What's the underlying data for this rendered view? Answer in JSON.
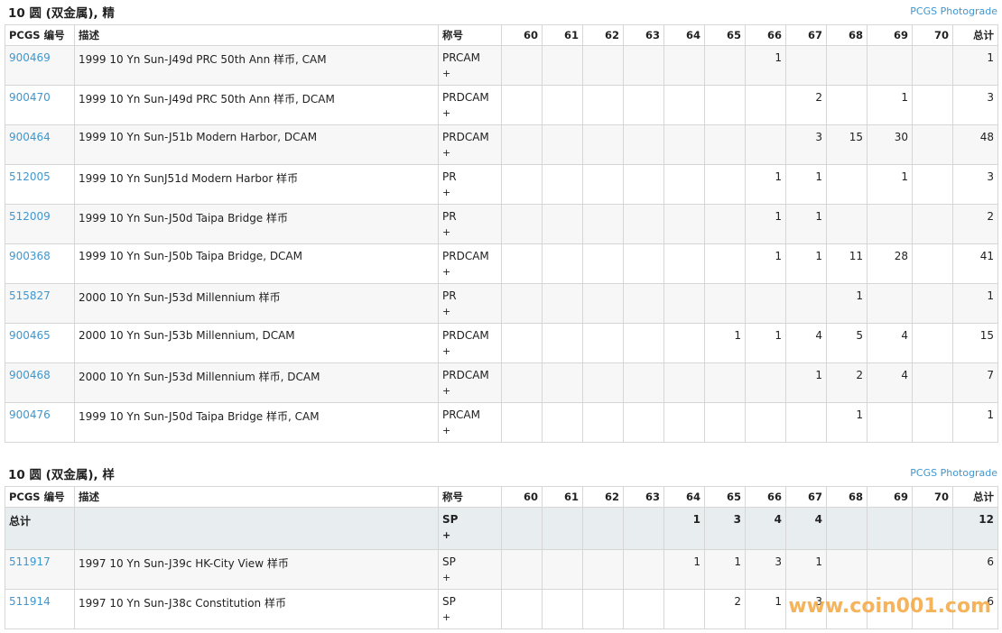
{
  "sections": [
    {
      "title": "10 圆 (双金属), 精",
      "link": "PCGS Photograde",
      "headers": [
        "PCGS 编号",
        "描述",
        "称号",
        "60",
        "61",
        "62",
        "63",
        "64",
        "65",
        "66",
        "67",
        "68",
        "69",
        "70",
        "总计"
      ],
      "rows": [
        {
          "pcgs": "900469",
          "description": "1999 10 Yn Sun-J49d PRC 50th Ann 样币, CAM",
          "designation": "PRCAM",
          "plus": "+",
          "grades": [
            null,
            null,
            null,
            null,
            null,
            null,
            1,
            null,
            null,
            null,
            null
          ],
          "total": 1
        },
        {
          "pcgs": "900470",
          "description": "1999 10 Yn Sun-J49d PRC 50th Ann 样币, DCAM",
          "designation": "PRDCAM",
          "plus": "+",
          "grades": [
            null,
            null,
            null,
            null,
            null,
            null,
            null,
            2,
            null,
            1,
            null
          ],
          "total": 3
        },
        {
          "pcgs": "900464",
          "description": "1999 10 Yn Sun-J51b Modern Harbor, DCAM",
          "designation": "PRDCAM",
          "plus": "+",
          "grades": [
            null,
            null,
            null,
            null,
            null,
            null,
            null,
            3,
            15,
            30,
            null
          ],
          "total": 48
        },
        {
          "pcgs": "512005",
          "description": "1999 10 Yn SunJ51d Modern Harbor 样币",
          "designation": "PR",
          "plus": "+",
          "grades": [
            null,
            null,
            null,
            null,
            null,
            null,
            1,
            1,
            null,
            1,
            null
          ],
          "total": 3
        },
        {
          "pcgs": "512009",
          "description": "1999 10 Yn Sun-J50d Taipa Bridge 样币",
          "designation": "PR",
          "plus": "+",
          "grades": [
            null,
            null,
            null,
            null,
            null,
            null,
            1,
            1,
            null,
            null,
            null
          ],
          "total": 2
        },
        {
          "pcgs": "900368",
          "description": "1999 10 Yn Sun-J50b Taipa Bridge, DCAM",
          "designation": "PRDCAM",
          "plus": "+",
          "grades": [
            null,
            null,
            null,
            null,
            null,
            null,
            1,
            1,
            11,
            28,
            null
          ],
          "total": 41
        },
        {
          "pcgs": "515827",
          "description": "2000 10 Yn Sun-J53d Millennium 样币",
          "designation": "PR",
          "plus": "+",
          "grades": [
            null,
            null,
            null,
            null,
            null,
            null,
            null,
            null,
            1,
            null,
            null
          ],
          "total": 1
        },
        {
          "pcgs": "900465",
          "description": "2000 10 Yn Sun-J53b Millennium, DCAM",
          "designation": "PRDCAM",
          "plus": "+",
          "grades": [
            null,
            null,
            null,
            null,
            null,
            1,
            1,
            4,
            5,
            4,
            null
          ],
          "total": 15
        },
        {
          "pcgs": "900468",
          "description": "2000 10 Yn Sun-J53d Millennium 样币, DCAM",
          "designation": "PRDCAM",
          "plus": "+",
          "grades": [
            null,
            null,
            null,
            null,
            null,
            null,
            null,
            1,
            2,
            4,
            null
          ],
          "total": 7
        },
        {
          "pcgs": "900476",
          "description": "1999 10 Yn Sun-J50d Taipa Bridge 样币, CAM",
          "designation": "PRCAM",
          "plus": "+",
          "grades": [
            null,
            null,
            null,
            null,
            null,
            null,
            null,
            null,
            1,
            null,
            null
          ],
          "total": 1
        }
      ]
    },
    {
      "title": "10 圆 (双金属), 样",
      "link": "PCGS Photograde",
      "headers": [
        "PCGS 编号",
        "描述",
        "称号",
        "60",
        "61",
        "62",
        "63",
        "64",
        "65",
        "66",
        "67",
        "68",
        "69",
        "70",
        "总计"
      ],
      "total_row": {
        "label": "总计",
        "designation": "SP",
        "plus": "+",
        "grades": [
          null,
          null,
          null,
          null,
          1,
          3,
          4,
          4,
          null,
          null,
          null
        ],
        "total": 12
      },
      "rows": [
        {
          "pcgs": "511917",
          "description": "1997 10 Yn Sun-J39c HK-City View 样币",
          "designation": "SP",
          "plus": "+",
          "grades": [
            null,
            null,
            null,
            null,
            1,
            1,
            3,
            1,
            null,
            null,
            null
          ],
          "total": 6
        },
        {
          "pcgs": "511914",
          "description": "1997 10 Yn Sun-J38c Constitution 样币",
          "designation": "SP",
          "plus": "+",
          "grades": [
            null,
            null,
            null,
            null,
            null,
            2,
            1,
            3,
            null,
            null,
            null
          ],
          "total": 6
        }
      ]
    }
  ],
  "watermark": "www.coin001.com"
}
